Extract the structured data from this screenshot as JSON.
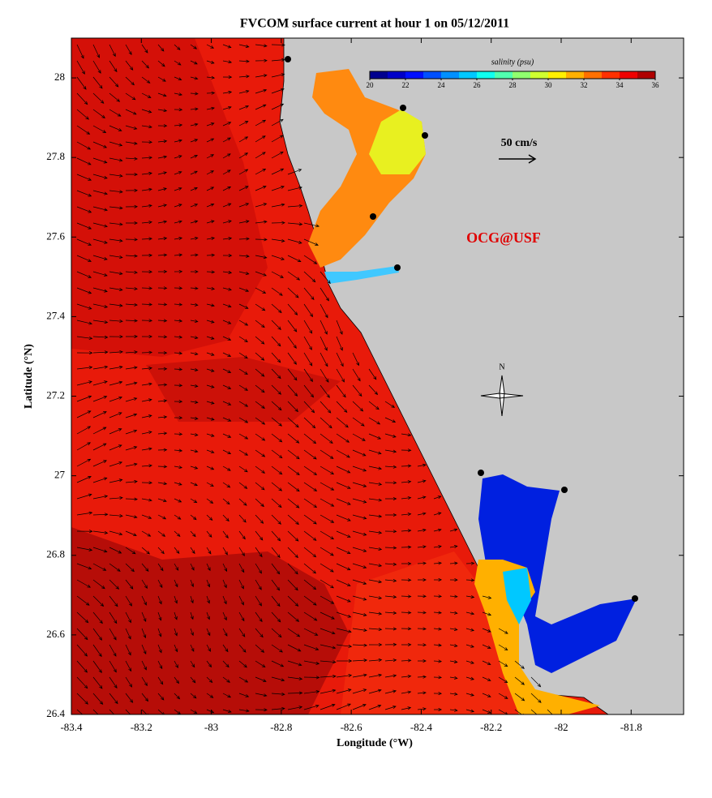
{
  "map": {
    "title": "FVCOM surface current at hour 1 on 05/12/2011",
    "x_label": "Longitude (°W)",
    "y_label": "Latitude (°N)",
    "xlim": [
      -83.4,
      -81.65
    ],
    "ylim": [
      26.4,
      28.1
    ],
    "xticks": [
      -83.4,
      -83.2,
      -83,
      -82.8,
      -82.6,
      -82.4,
      -82.2,
      -82,
      -81.8
    ],
    "yticks": [
      26.4,
      26.6,
      26.8,
      27,
      27.2,
      27.4,
      27.6,
      27.8,
      28
    ],
    "colorbar": {
      "label": "salinity (psu)",
      "ticks": [
        20,
        22,
        24,
        26,
        28,
        30,
        32,
        34,
        36
      ],
      "colors": [
        "#00008f",
        "#0000c8",
        "#0010ff",
        "#0050ff",
        "#0090ff",
        "#00c8ff",
        "#10ffef",
        "#50ffaf",
        "#90ff6f",
        "#cfff30",
        "#ffef00",
        "#ffb000",
        "#ff7000",
        "#ff3000",
        "#ef0000",
        "#af0000"
      ]
    },
    "scale_label": "50 cm/s",
    "watermark": "OCG@USF",
    "north": "N"
  }
}
